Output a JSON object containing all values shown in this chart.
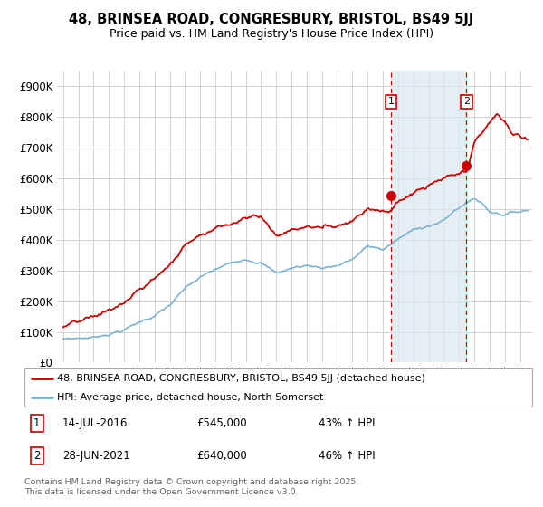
{
  "title1": "48, BRINSEA ROAD, CONGRESBURY, BRISTOL, BS49 5JJ",
  "title2": "Price paid vs. HM Land Registry's House Price Index (HPI)",
  "ylim": [
    0,
    950000
  ],
  "yticks": [
    0,
    100000,
    200000,
    300000,
    400000,
    500000,
    600000,
    700000,
    800000,
    900000
  ],
  "ytick_labels": [
    "£0",
    "£100K",
    "£200K",
    "£300K",
    "£400K",
    "£500K",
    "£600K",
    "£700K",
    "£800K",
    "£900K"
  ],
  "xlim_start": 1994.6,
  "xlim_end": 2025.8,
  "line1_color": "#cc0000",
  "line2_color": "#7ab3d4",
  "transaction1_date": 2016.54,
  "transaction1_price": 545000,
  "transaction2_date": 2021.49,
  "transaction2_price": 640000,
  "legend_line1": "48, BRINSEA ROAD, CONGRESBURY, BRISTOL, BS49 5JJ (detached house)",
  "legend_line2": "HPI: Average price, detached house, North Somerset",
  "footnote": "Contains HM Land Registry data © Crown copyright and database right 2025.\nThis data is licensed under the Open Government Licence v3.0.",
  "background_color": "#ffffff",
  "grid_color": "#cccccc",
  "vline_color": "#cc0000",
  "marker_box_color": "#cc0000",
  "span_color": "#dce8f0"
}
